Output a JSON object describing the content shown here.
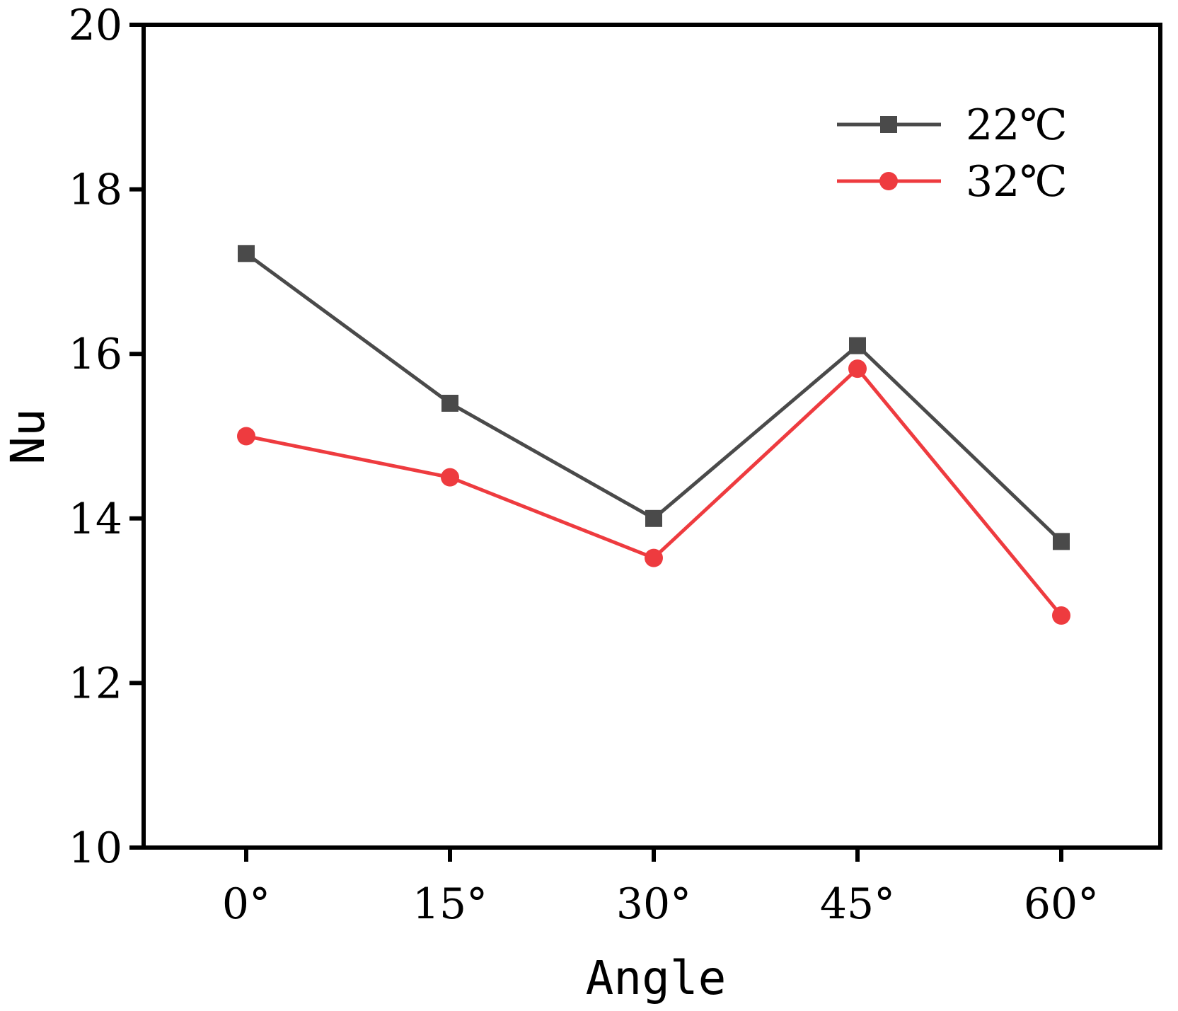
{
  "chart_data": {
    "type": "line",
    "title": "",
    "xlabel": "Angle",
    "ylabel": "Nu",
    "categories": [
      "0°",
      "15°",
      "30°",
      "45°",
      "60°"
    ],
    "ylim": [
      10,
      20
    ],
    "yticks": [
      "10",
      "12",
      "14",
      "16",
      "18",
      "20"
    ],
    "legend_position": "top-right",
    "grid": false,
    "series": [
      {
        "name": "22℃",
        "values": [
          17.22,
          15.4,
          14.0,
          16.1,
          13.72
        ],
        "color": "#4a4a4a",
        "marker": "square"
      },
      {
        "name": "32℃",
        "values": [
          15.0,
          14.5,
          13.52,
          15.82,
          12.82
        ],
        "color": "#ee3b3f",
        "marker": "circle"
      }
    ]
  }
}
